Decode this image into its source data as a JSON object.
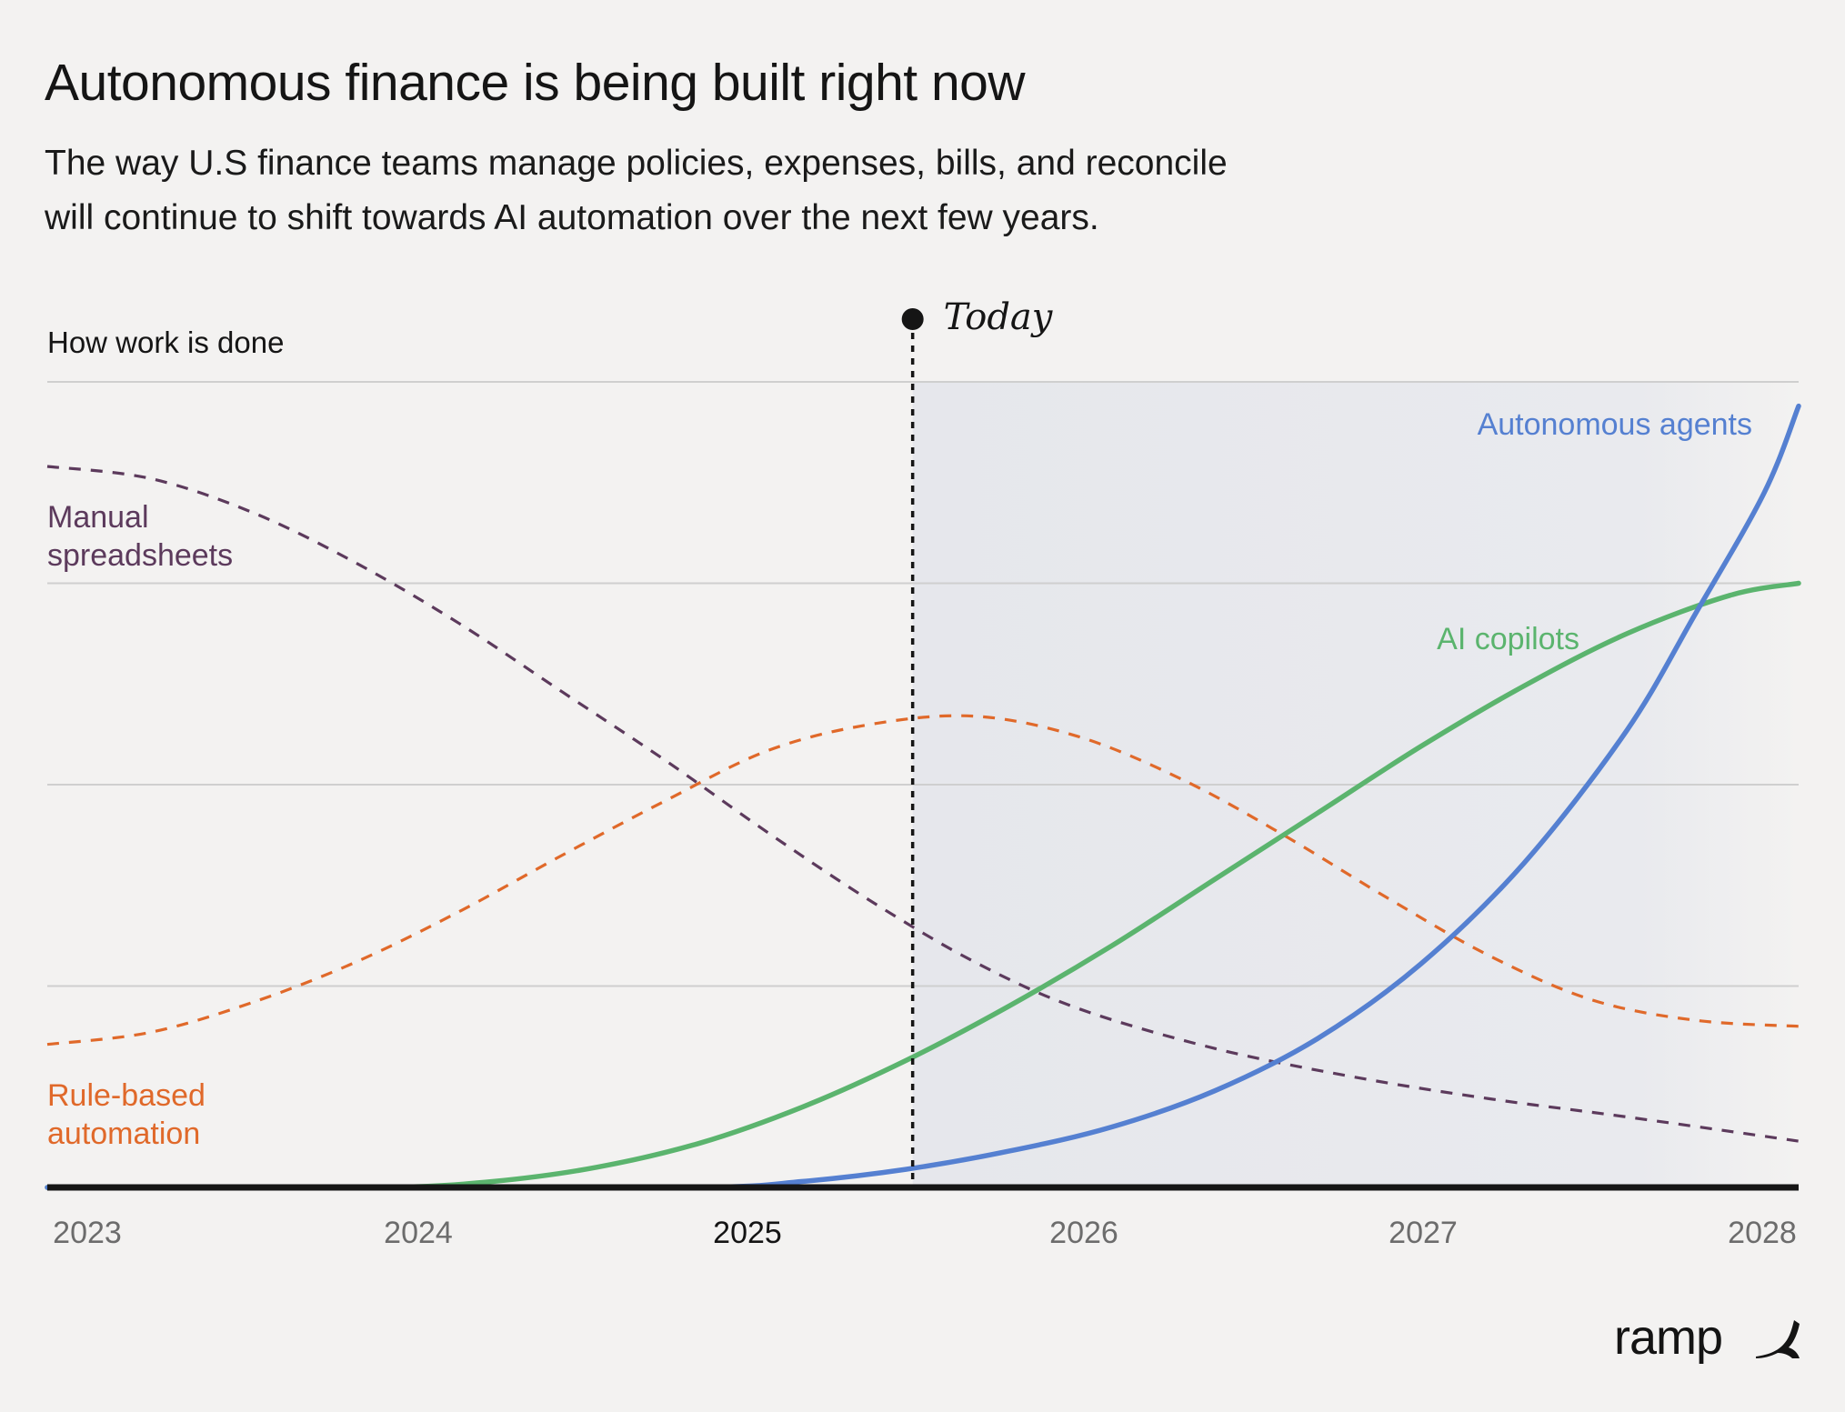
{
  "header": {
    "title": "Autonomous finance is being built right now",
    "subtitle_line1": "The way U.S finance teams manage policies, expenses, bills, and reconcile",
    "subtitle_line2": "will continue to shift towards AI automation over the next few years."
  },
  "brand": {
    "wordmark": "ramp",
    "icon": "ramp-swoosh-icon"
  },
  "chart_data": {
    "type": "line",
    "ylabel": "How work is done",
    "x_ticks": [
      "2023",
      "2024",
      "2025",
      "2026",
      "2027",
      "2028"
    ],
    "highlighted_tick": "2025",
    "xlim": [
      2023,
      2028.1
    ],
    "ylim": [
      0,
      4
    ],
    "grid": "horizontal",
    "today_marker": {
      "label": "Today",
      "x": 2025.52,
      "shaded_region": "after"
    },
    "series": [
      {
        "name": "Manual spreadsheets",
        "style": "dashed",
        "color": "#5c3a5c",
        "label_lines": [
          "Manual",
          "spreadsheets"
        ],
        "x": [
          2023.0,
          2023.3,
          2023.6,
          2023.9,
          2024.2,
          2024.5,
          2024.8,
          2025.1,
          2025.4,
          2025.7,
          2026.0,
          2026.4,
          2026.8,
          2027.2,
          2027.6,
          2028.1
        ],
        "y": [
          3.58,
          3.52,
          3.35,
          3.1,
          2.8,
          2.46,
          2.12,
          1.76,
          1.42,
          1.12,
          0.89,
          0.69,
          0.55,
          0.44,
          0.35,
          0.23
        ]
      },
      {
        "name": "Rule-based automation",
        "style": "dashed",
        "color": "#e0692a",
        "label_lines": [
          "Rule-based",
          "automation"
        ],
        "x": [
          2023.0,
          2023.3,
          2023.6,
          2023.9,
          2024.2,
          2024.5,
          2024.8,
          2025.1,
          2025.4,
          2025.7,
          2026.0,
          2026.3,
          2026.6,
          2026.9,
          2027.2,
          2027.5,
          2027.8,
          2028.1
        ],
        "y": [
          0.71,
          0.77,
          0.92,
          1.12,
          1.37,
          1.65,
          1.92,
          2.17,
          2.3,
          2.34,
          2.24,
          2.03,
          1.75,
          1.44,
          1.15,
          0.93,
          0.83,
          0.8
        ]
      },
      {
        "name": "AI copilots",
        "style": "solid",
        "color": "#5bb46e",
        "label_lines": [
          "AI copilots"
        ],
        "x": [
          2023.0,
          2023.5,
          2024.0,
          2024.3,
          2024.6,
          2024.9,
          2025.2,
          2025.5,
          2025.8,
          2026.1,
          2026.4,
          2026.7,
          2027.0,
          2027.3,
          2027.6,
          2027.9,
          2028.1
        ],
        "y": [
          0.0,
          0.0,
          0.0,
          0.03,
          0.1,
          0.22,
          0.4,
          0.63,
          0.9,
          1.2,
          1.53,
          1.86,
          2.19,
          2.49,
          2.75,
          2.94,
          3.0
        ]
      },
      {
        "name": "Autonomous agents",
        "style": "solid",
        "color": "#5580d1",
        "label_lines": [
          "Autonomous agents"
        ],
        "x": [
          2023.0,
          2024.0,
          2024.9,
          2025.2,
          2025.5,
          2025.8,
          2026.1,
          2026.4,
          2026.7,
          2027.0,
          2027.3,
          2027.6,
          2027.8,
          2028.0,
          2028.1
        ],
        "y": [
          0.0,
          0.0,
          0.0,
          0.03,
          0.09,
          0.18,
          0.3,
          0.48,
          0.74,
          1.11,
          1.61,
          2.27,
          2.85,
          3.45,
          3.88
        ]
      }
    ]
  }
}
